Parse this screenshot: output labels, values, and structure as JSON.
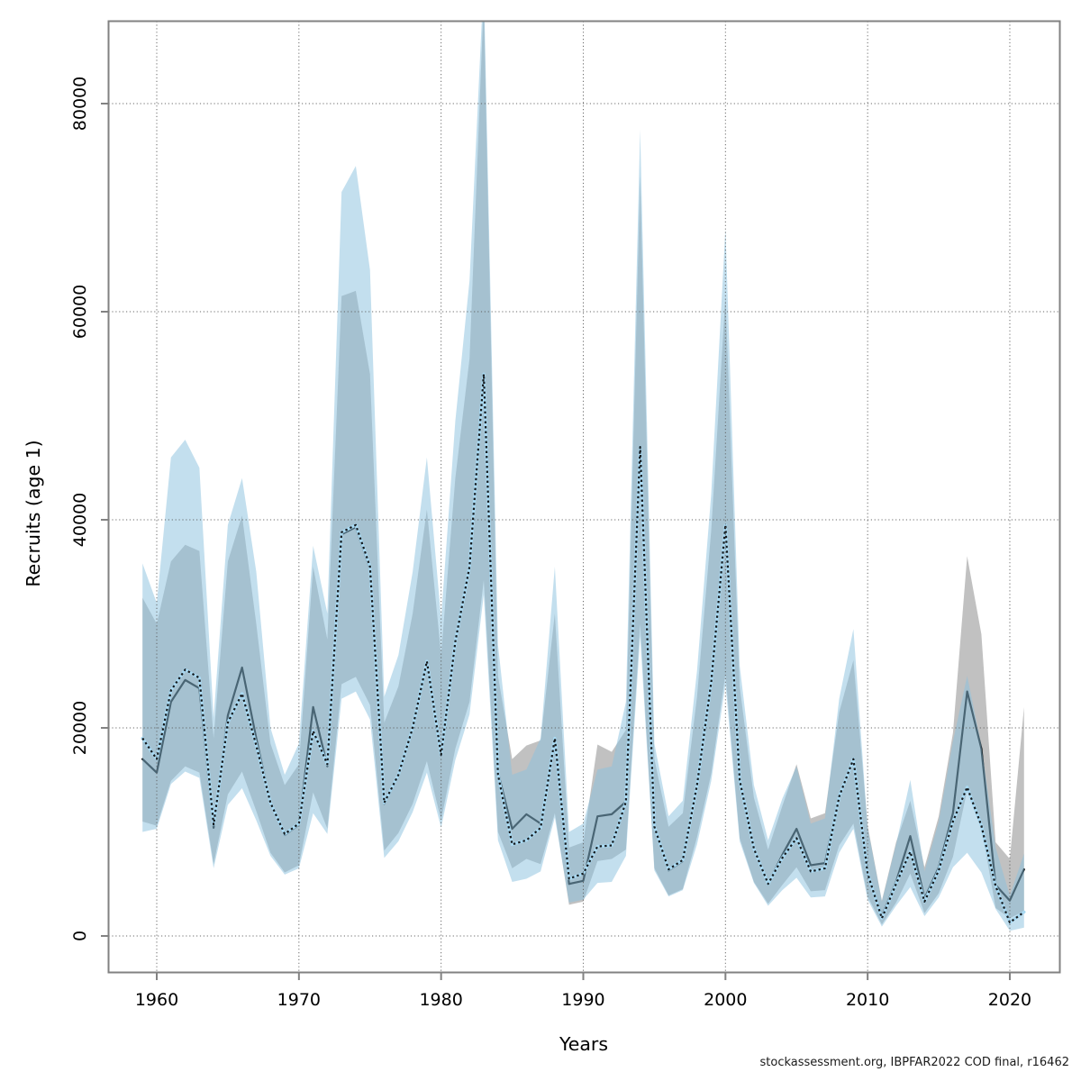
{
  "chart_data": {
    "type": "area",
    "description": "Stock assessment recruitment time series with two model runs: base run (grey confidence band, solid line) and comparison run (light-blue confidence band, dotted line)",
    "xlabel": "Years",
    "ylabel": "Recruits (age 1)",
    "caption": "stockassessment.org, IBPFAR2022 COD final, r16462",
    "x_ticks": [
      1960,
      1970,
      1980,
      1990,
      2000,
      2010,
      2020
    ],
    "y_ticks": [
      0,
      20000,
      40000,
      60000,
      80000
    ],
    "xlim": [
      1956.6,
      2023.5
    ],
    "ylim": [
      -3400,
      88000
    ],
    "grid": "dotted",
    "legend_position": "none",
    "x": [
      1959,
      1960,
      1961,
      1962,
      1963,
      1964,
      1965,
      1966,
      1967,
      1968,
      1969,
      1970,
      1971,
      1972,
      1973,
      1974,
      1975,
      1976,
      1977,
      1978,
      1979,
      1980,
      1981,
      1982,
      1983,
      1984,
      1985,
      1986,
      1987,
      1988,
      1989,
      1990,
      1991,
      1992,
      1993,
      1994,
      1995,
      1996,
      1997,
      1998,
      1999,
      2000,
      2001,
      2002,
      2003,
      2004,
      2005,
      2006,
      2007,
      2008,
      2009,
      2010,
      2011,
      2012,
      2013,
      2014,
      2015,
      2016,
      2017,
      2018,
      2019,
      2020,
      2021
    ],
    "series": [
      {
        "name": "base-run-grey-CI",
        "band_color": "#c1c1c1",
        "line_color": "#000000",
        "line_style": "solid",
        "median": [
          17000,
          15700,
          22500,
          24600,
          23800,
          10400,
          21200,
          25800,
          19000,
          12700,
          9700,
          10700,
          22000,
          16300,
          38600,
          39300,
          35300,
          12700,
          15400,
          19900,
          26300,
          17400,
          28200,
          35300,
          53700,
          15700,
          10300,
          11700,
          10800,
          18700,
          5000,
          5300,
          11500,
          11700,
          12900,
          46600,
          10400,
          6300,
          7200,
          14700,
          24300,
          39300,
          14900,
          8300,
          5000,
          7800,
          10300,
          6800,
          7000,
          13500,
          16900,
          6100,
          1900,
          5200,
          9600,
          3600,
          6600,
          11800,
          23500,
          18000,
          4900,
          3400,
          6400
        ],
        "lo": [
          11000,
          10600,
          14900,
          16300,
          15700,
          6900,
          13600,
          15800,
          12000,
          8000,
          6100,
          6800,
          13800,
          10300,
          24200,
          24900,
          22200,
          8200,
          9900,
          12700,
          16800,
          11100,
          18000,
          22500,
          34200,
          10000,
          6500,
          7400,
          6900,
          11800,
          3000,
          3300,
          7200,
          7400,
          8300,
          30000,
          6500,
          3900,
          4500,
          9500,
          15600,
          25200,
          9400,
          5200,
          3100,
          4900,
          6600,
          4300,
          4400,
          8700,
          10800,
          3800,
          1100,
          3200,
          6000,
          2200,
          4100,
          7600,
          14000,
          10500,
          2700,
          1700,
          2400
        ],
        "hi": [
          32500,
          30000,
          36000,
          37600,
          37000,
          19000,
          36000,
          40400,
          30000,
          18500,
          14500,
          16500,
          35500,
          28500,
          61500,
          62000,
          54000,
          20500,
          24000,
          31000,
          41000,
          27000,
          44000,
          55500,
          90000,
          25000,
          17000,
          18300,
          18800,
          31000,
          8500,
          9000,
          18400,
          17700,
          19800,
          73000,
          17000,
          10500,
          11800,
          23000,
          39000,
          61500,
          24000,
          13300,
          8300,
          12500,
          16500,
          11300,
          11800,
          21500,
          26500,
          10600,
          3400,
          9000,
          13000,
          6600,
          11500,
          19500,
          36500,
          29000,
          9000,
          7400,
          22000
        ]
      },
      {
        "name": "comparison-run-blue-CI",
        "band_color": "rgba(140,194,222,0.52)",
        "line_color": "#14181b",
        "line_halo_color": "#a9d9f2",
        "line_style": "dotted",
        "median": [
          19000,
          17000,
          23600,
          25600,
          24800,
          10700,
          20500,
          23300,
          18300,
          12800,
          9800,
          10800,
          19700,
          16500,
          38800,
          39500,
          35500,
          12800,
          15500,
          20000,
          26400,
          17400,
          28300,
          35500,
          54000,
          15500,
          8800,
          9200,
          10400,
          19000,
          5500,
          6000,
          8600,
          8700,
          12900,
          47000,
          10500,
          6400,
          7300,
          14500,
          24400,
          39500,
          15000,
          8400,
          5000,
          7500,
          9400,
          6200,
          6500,
          13400,
          17000,
          6000,
          1700,
          5000,
          8100,
          3300,
          6300,
          11000,
          14300,
          10600,
          4800,
          1300,
          2300
        ],
        "lo": [
          10000,
          10300,
          14600,
          15800,
          15200,
          6500,
          12600,
          14200,
          11100,
          7700,
          5900,
          6500,
          11800,
          9800,
          22800,
          23500,
          20800,
          7500,
          9100,
          11900,
          15700,
          10400,
          16900,
          21300,
          32800,
          9200,
          5200,
          5500,
          6200,
          11400,
          3200,
          3500,
          5100,
          5200,
          7700,
          28800,
          6300,
          3800,
          4400,
          8800,
          14900,
          24200,
          9100,
          5100,
          2900,
          4400,
          5600,
          3700,
          3800,
          8000,
          10300,
          3500,
          900,
          2900,
          4700,
          1900,
          3700,
          6600,
          8000,
          6100,
          2600,
          500,
          800
        ],
        "hi": [
          35800,
          32000,
          46000,
          47700,
          45000,
          21000,
          39500,
          44000,
          35000,
          20000,
          15500,
          18500,
          37500,
          31000,
          71500,
          74000,
          64000,
          23000,
          27000,
          35000,
          46000,
          30500,
          49500,
          63000,
          92000,
          28000,
          15500,
          16000,
          19000,
          35500,
          10000,
          10800,
          16000,
          16300,
          22500,
          77500,
          18500,
          11500,
          13000,
          25500,
          42500,
          68000,
          26000,
          14500,
          9200,
          13200,
          16300,
          10800,
          11300,
          22800,
          29500,
          10400,
          3300,
          8800,
          15000,
          6200,
          11000,
          18700,
          25000,
          18300,
          8500,
          3900,
          7900
        ]
      }
    ],
    "style": {
      "axis_color": "#828282",
      "grid_color": "#5a5a5a",
      "tick_label_color": "#000000",
      "background": "#ffffff"
    }
  }
}
